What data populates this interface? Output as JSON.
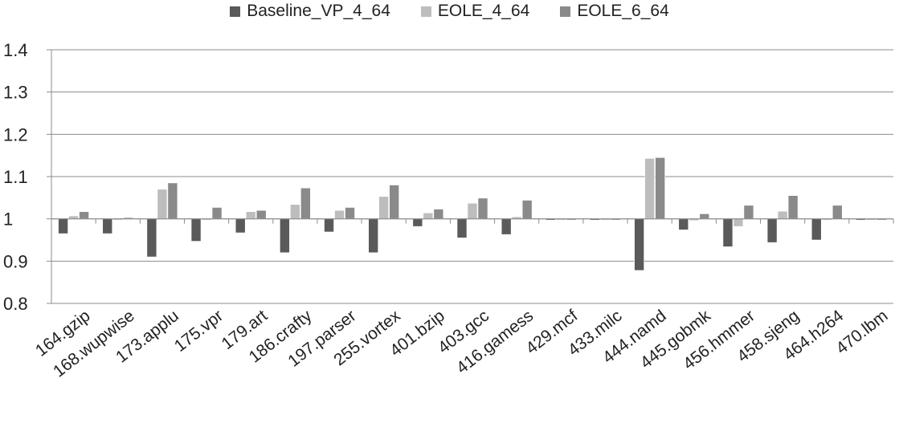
{
  "chart_data": {
    "type": "bar",
    "title": "",
    "xlabel": "",
    "ylabel": "",
    "ylim": [
      0.8,
      1.4
    ],
    "yticks": [
      "0.8",
      "0.9",
      "1",
      "1.1",
      "1.2",
      "1.3",
      "1.4"
    ],
    "baseline": 1.0,
    "grid": true,
    "legend_position": "top",
    "categories": [
      "164.gzip",
      "168.wupwise",
      "173.applu",
      "175.vpr",
      "179.art",
      "186.crafty",
      "197.parser",
      "255.vortex",
      "401.bzip",
      "403.gcc",
      "416.gamess",
      "429.mcf",
      "433.milc",
      "444.namd",
      "445.gobmk",
      "456.hmmer",
      "458.sjeng",
      "464.h264",
      "470.lbm"
    ],
    "series": [
      {
        "name": "Baseline_VP_4_64",
        "color": "#5a5a5a",
        "values": [
          0.965,
          0.965,
          0.91,
          0.947,
          0.967,
          0.92,
          0.969,
          0.92,
          0.982,
          0.955,
          0.963,
          0.998,
          0.998,
          0.878,
          0.974,
          0.934,
          0.944,
          0.95,
          0.998
        ]
      },
      {
        "name": "EOLE_4_64",
        "color": "#bdbdbd",
        "values": [
          1.007,
          0.998,
          1.07,
          0.998,
          1.017,
          1.034,
          1.02,
          1.053,
          1.014,
          1.037,
          1.005,
          0.997,
          0.997,
          1.143,
          0.996,
          0.982,
          1.018,
          0.997,
          0.997
        ]
      },
      {
        "name": "EOLE_6_64",
        "color": "#8a8a8a",
        "values": [
          1.017,
          1.003,
          1.085,
          1.027,
          1.02,
          1.073,
          1.027,
          1.08,
          1.023,
          1.049,
          1.044,
          0.998,
          0.998,
          1.145,
          1.012,
          1.032,
          1.055,
          1.032,
          0.998
        ]
      }
    ]
  }
}
